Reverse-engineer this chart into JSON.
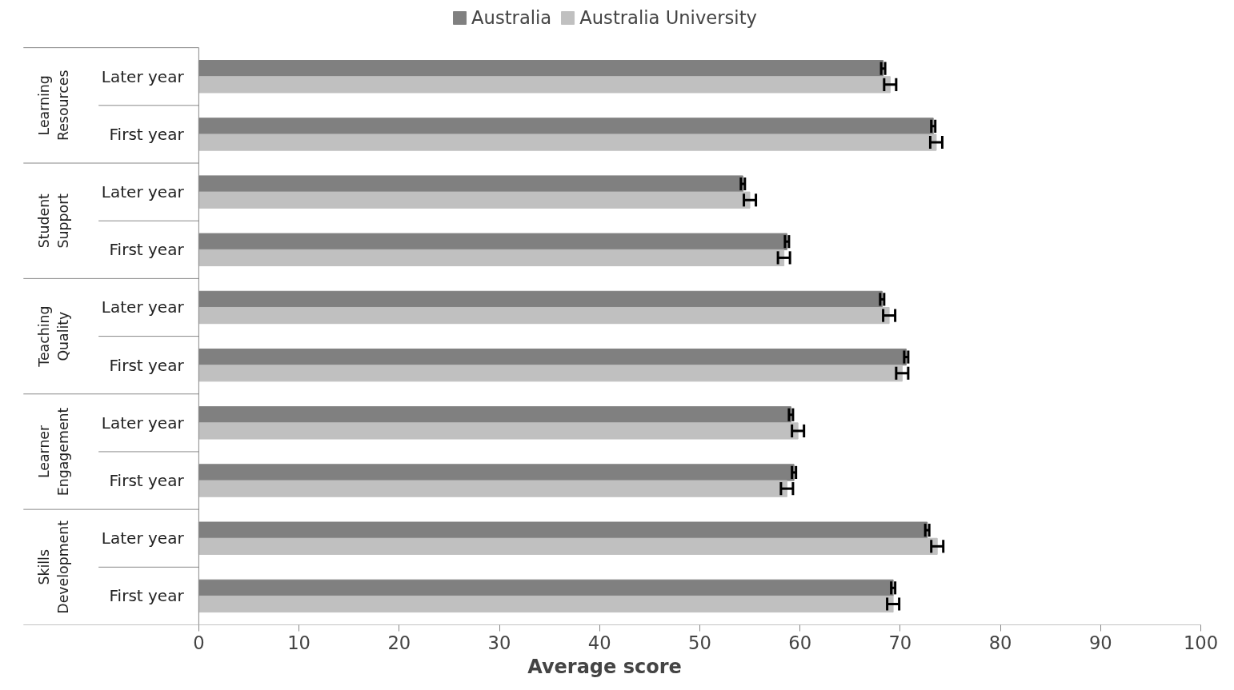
{
  "chart_data": {
    "type": "bar",
    "orientation": "horizontal",
    "xlabel": "Average score",
    "categories": [
      "Later year",
      "First year",
      "Later year",
      "First year",
      "Later year",
      "First year",
      "Later year",
      "First year",
      "Later year",
      "First year"
    ],
    "annotations": [
      "Learning Resources",
      "Student Support",
      "Teaching Quality",
      "Learner Engagement",
      "Skills Development"
    ],
    "series": [
      {
        "name": "Australia",
        "color": "#808080",
        "values": [
          68.3,
          73.3,
          54.3,
          58.7,
          68.2,
          70.6,
          59.1,
          59.4,
          72.7,
          69.3
        ],
        "errors": [
          0.2,
          0.2,
          0.2,
          0.2,
          0.2,
          0.2,
          0.2,
          0.2,
          0.2,
          0.2
        ]
      },
      {
        "name": "Australia University",
        "color": "#c0c0c0",
        "values": [
          69.0,
          73.6,
          55.0,
          58.4,
          68.9,
          70.2,
          59.8,
          58.7,
          73.7,
          69.3
        ],
        "errors": [
          0.6,
          0.6,
          0.6,
          0.6,
          0.6,
          0.6,
          0.6,
          0.6,
          0.6,
          0.6
        ]
      }
    ],
    "xlim": [
      0,
      100
    ],
    "xticks": [
      0,
      10,
      20,
      30,
      40,
      50,
      60,
      70,
      80,
      90,
      100
    ],
    "grid": false,
    "legend": "top"
  }
}
